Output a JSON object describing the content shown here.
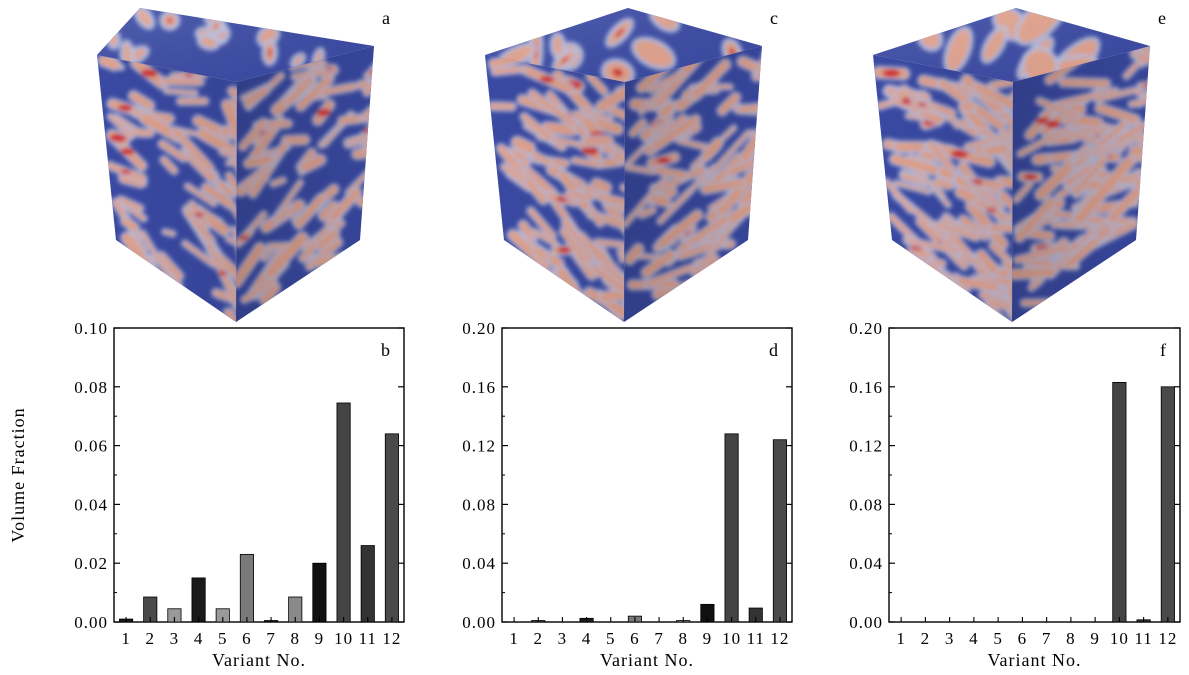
{
  "panels": [
    {
      "letter": "a",
      "type": "microstructure-cube",
      "colors": {
        "matrix": "#3b4ba6",
        "low": "#b9c3e6",
        "mid": "#e7a38a",
        "high": "#d01010"
      }
    },
    {
      "letter": "c",
      "type": "microstructure-cube",
      "colors": {
        "matrix": "#3b4ba6",
        "low": "#b9c3e6",
        "mid": "#e7a38a",
        "high": "#d01010"
      }
    },
    {
      "letter": "e",
      "type": "microstructure-cube",
      "colors": {
        "matrix": "#3b4ba6",
        "low": "#b9c3e6",
        "mid": "#e7a38a",
        "high": "#d01010"
      }
    }
  ],
  "chart_data": [
    {
      "type": "bar",
      "panel": "b",
      "categories": [
        "1",
        "2",
        "3",
        "4",
        "5",
        "6",
        "7",
        "8",
        "9",
        "10",
        "11",
        "12"
      ],
      "values": [
        0.001,
        0.0085,
        0.0045,
        0.015,
        0.0045,
        0.023,
        0.0005,
        0.0085,
        0.02,
        0.0745,
        0.026,
        0.064
      ],
      "bar_colors": [
        "#1a1a1a",
        "#4a4a4a",
        "#9a9a9a",
        "#1a1a1a",
        "#9a9a9a",
        "#7a7a7a",
        "#1a1a1a",
        "#8a8a8a",
        "#111111",
        "#444444",
        "#333333",
        "#4a4a4a"
      ],
      "xlabel": "Variant No.",
      "ylabel": "Volume Fraction",
      "ylim": [
        0,
        0.1
      ],
      "yticks": [
        "0.00",
        "0.02",
        "0.04",
        "0.06",
        "0.08",
        "0.10"
      ],
      "grid": false
    },
    {
      "type": "bar",
      "panel": "d",
      "categories": [
        "1",
        "2",
        "3",
        "4",
        "5",
        "6",
        "7",
        "8",
        "9",
        "10",
        "11",
        "12"
      ],
      "values": [
        0,
        0.001,
        0,
        0.0025,
        0,
        0.004,
        0,
        0.001,
        0.012,
        0.128,
        0.0095,
        0.124
      ],
      "bar_colors": [
        "#1a1a1a",
        "#4a4a4a",
        "#9a9a9a",
        "#1a1a1a",
        "#9a9a9a",
        "#7a7a7a",
        "#1a1a1a",
        "#8a8a8a",
        "#111111",
        "#444444",
        "#333333",
        "#4a4a4a"
      ],
      "xlabel": "Variant No.",
      "ylabel": "",
      "ylim": [
        0,
        0.2
      ],
      "yticks": [
        "0.00",
        "0.04",
        "0.08",
        "0.12",
        "0.16",
        "0.20"
      ],
      "grid": false
    },
    {
      "type": "bar",
      "panel": "f",
      "categories": [
        "1",
        "2",
        "3",
        "4",
        "5",
        "6",
        "7",
        "8",
        "9",
        "10",
        "11",
        "12"
      ],
      "values": [
        0,
        0,
        0,
        0,
        0,
        0,
        0,
        0,
        0,
        0.163,
        0.0015,
        0.16
      ],
      "bar_colors": [
        "#1a1a1a",
        "#4a4a4a",
        "#9a9a9a",
        "#1a1a1a",
        "#9a9a9a",
        "#7a7a7a",
        "#1a1a1a",
        "#8a8a8a",
        "#111111",
        "#444444",
        "#333333",
        "#4a4a4a"
      ],
      "xlabel": "Variant No.",
      "ylabel": "",
      "ylim": [
        0,
        0.2
      ],
      "yticks": [
        "0.00",
        "0.04",
        "0.08",
        "0.12",
        "0.16",
        "0.20"
      ],
      "grid": false
    }
  ]
}
